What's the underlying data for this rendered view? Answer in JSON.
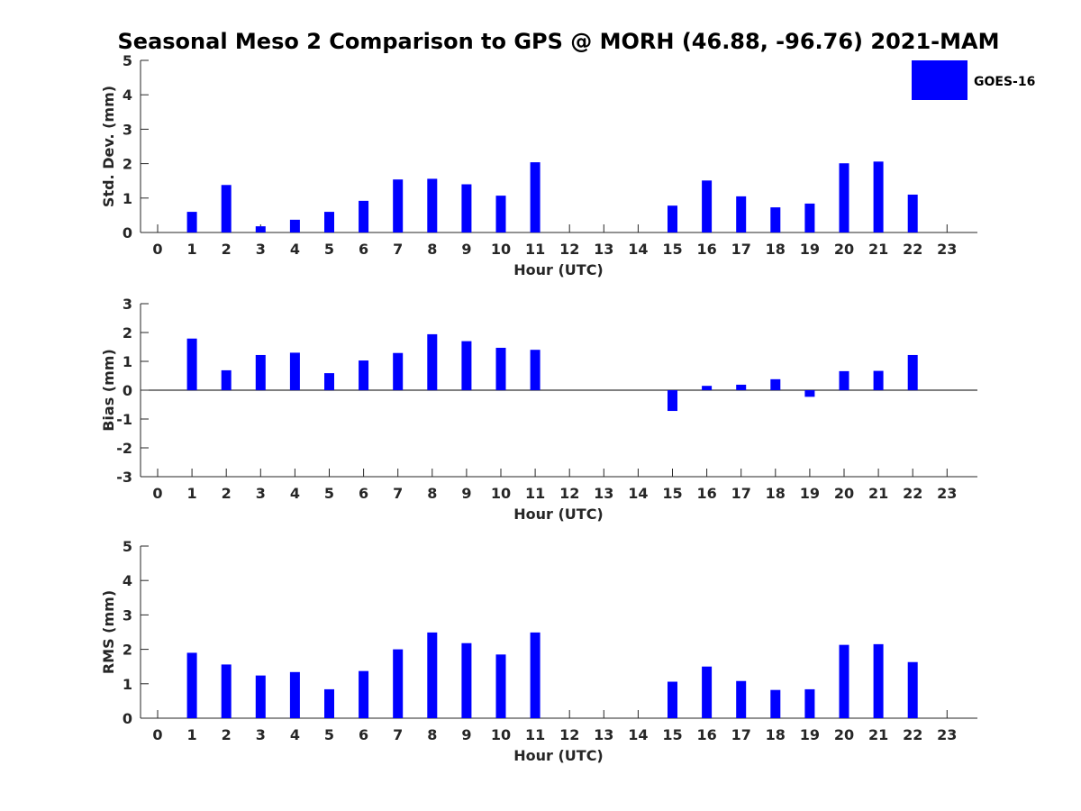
{
  "title": "Seasonal Meso 2 Comparison to GPS @ MORH (46.88, -96.76) 2021-MAM",
  "legend": {
    "label": "GOES-16",
    "color": "#0000ff"
  },
  "chart_data": [
    {
      "type": "bar",
      "ylabel": "Std. Dev. (mm)",
      "xlabel": "Hour (UTC)",
      "ylim": [
        0,
        5
      ],
      "yticks": [
        "0",
        "1",
        "2",
        "3",
        "4",
        "5"
      ],
      "categories": [
        "0",
        "1",
        "2",
        "3",
        "4",
        "5",
        "6",
        "7",
        "8",
        "9",
        "10",
        "11",
        "12",
        "13",
        "14",
        "15",
        "16",
        "17",
        "18",
        "19",
        "20",
        "21",
        "22",
        "23"
      ],
      "series": [
        {
          "name": "GOES-16",
          "values": [
            null,
            0.6,
            1.38,
            0.18,
            0.37,
            0.6,
            0.92,
            1.54,
            1.56,
            1.4,
            1.07,
            2.04,
            null,
            null,
            null,
            0.78,
            1.51,
            1.05,
            0.73,
            0.84,
            2.01,
            2.06,
            1.1,
            null
          ]
        }
      ]
    },
    {
      "type": "bar",
      "ylabel": "Bias (mm)",
      "xlabel": "Hour (UTC)",
      "ylim": [
        -3,
        3
      ],
      "yticks": [
        "-3",
        "-2",
        "-1",
        "0",
        "1",
        "2",
        "3"
      ],
      "categories": [
        "0",
        "1",
        "2",
        "3",
        "4",
        "5",
        "6",
        "7",
        "8",
        "9",
        "10",
        "11",
        "12",
        "13",
        "14",
        "15",
        "16",
        "17",
        "18",
        "19",
        "20",
        "21",
        "22",
        "23"
      ],
      "series": [
        {
          "name": "GOES-16",
          "values": [
            null,
            1.79,
            0.69,
            1.22,
            1.3,
            0.59,
            1.03,
            1.29,
            1.94,
            1.7,
            1.47,
            1.4,
            null,
            null,
            null,
            -0.72,
            0.15,
            0.19,
            0.38,
            -0.23,
            0.66,
            0.67,
            1.22,
            null
          ]
        }
      ]
    },
    {
      "type": "bar",
      "ylabel": "RMS (mm)",
      "xlabel": "Hour (UTC)",
      "ylim": [
        0,
        5
      ],
      "yticks": [
        "0",
        "1",
        "2",
        "3",
        "4",
        "5"
      ],
      "categories": [
        "0",
        "1",
        "2",
        "3",
        "4",
        "5",
        "6",
        "7",
        "8",
        "9",
        "10",
        "11",
        "12",
        "13",
        "14",
        "15",
        "16",
        "17",
        "18",
        "19",
        "20",
        "21",
        "22",
        "23"
      ],
      "series": [
        {
          "name": "GOES-16",
          "values": [
            null,
            1.9,
            1.56,
            1.24,
            1.34,
            0.84,
            1.37,
            2.0,
            2.49,
            2.18,
            1.85,
            2.49,
            null,
            null,
            null,
            1.06,
            1.5,
            1.08,
            0.82,
            0.84,
            2.13,
            2.15,
            1.63,
            null
          ]
        }
      ]
    }
  ]
}
